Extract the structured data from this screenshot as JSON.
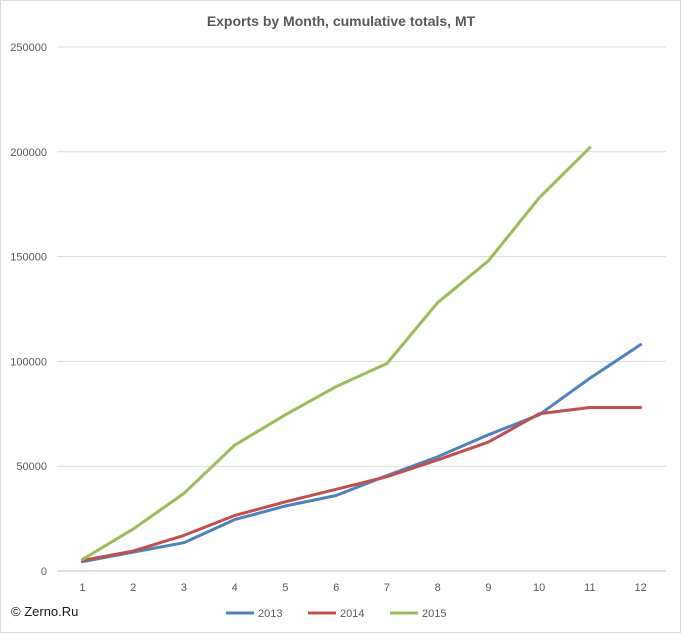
{
  "chart_data": {
    "type": "line",
    "title": "Exports by Month, cumulative totals, MT",
    "xlabel": "",
    "ylabel": "",
    "x": [
      1,
      2,
      3,
      4,
      5,
      6,
      7,
      8,
      9,
      10,
      11,
      12
    ],
    "ylim": [
      0,
      250000
    ],
    "yticks": [
      0,
      50000,
      100000,
      150000,
      200000,
      250000
    ],
    "grid": true,
    "legend_position": "bottom",
    "series": [
      {
        "name": "2013",
        "color": "#4f81bd",
        "values": [
          4500,
          9000,
          13500,
          24500,
          31000,
          36000,
          45500,
          54500,
          65000,
          74500,
          92000,
          108000
        ]
      },
      {
        "name": "2014",
        "color": "#c0504d",
        "values": [
          5000,
          9500,
          17000,
          26500,
          33000,
          39000,
          45000,
          53000,
          61500,
          75000,
          78000,
          78000
        ]
      },
      {
        "name": "2015",
        "color": "#9bbb59",
        "values": [
          5500,
          20000,
          37000,
          60000,
          74500,
          88000,
          99000,
          128000,
          148000,
          178000,
          202000,
          null
        ]
      }
    ]
  },
  "credit": "© Zerno.Ru"
}
